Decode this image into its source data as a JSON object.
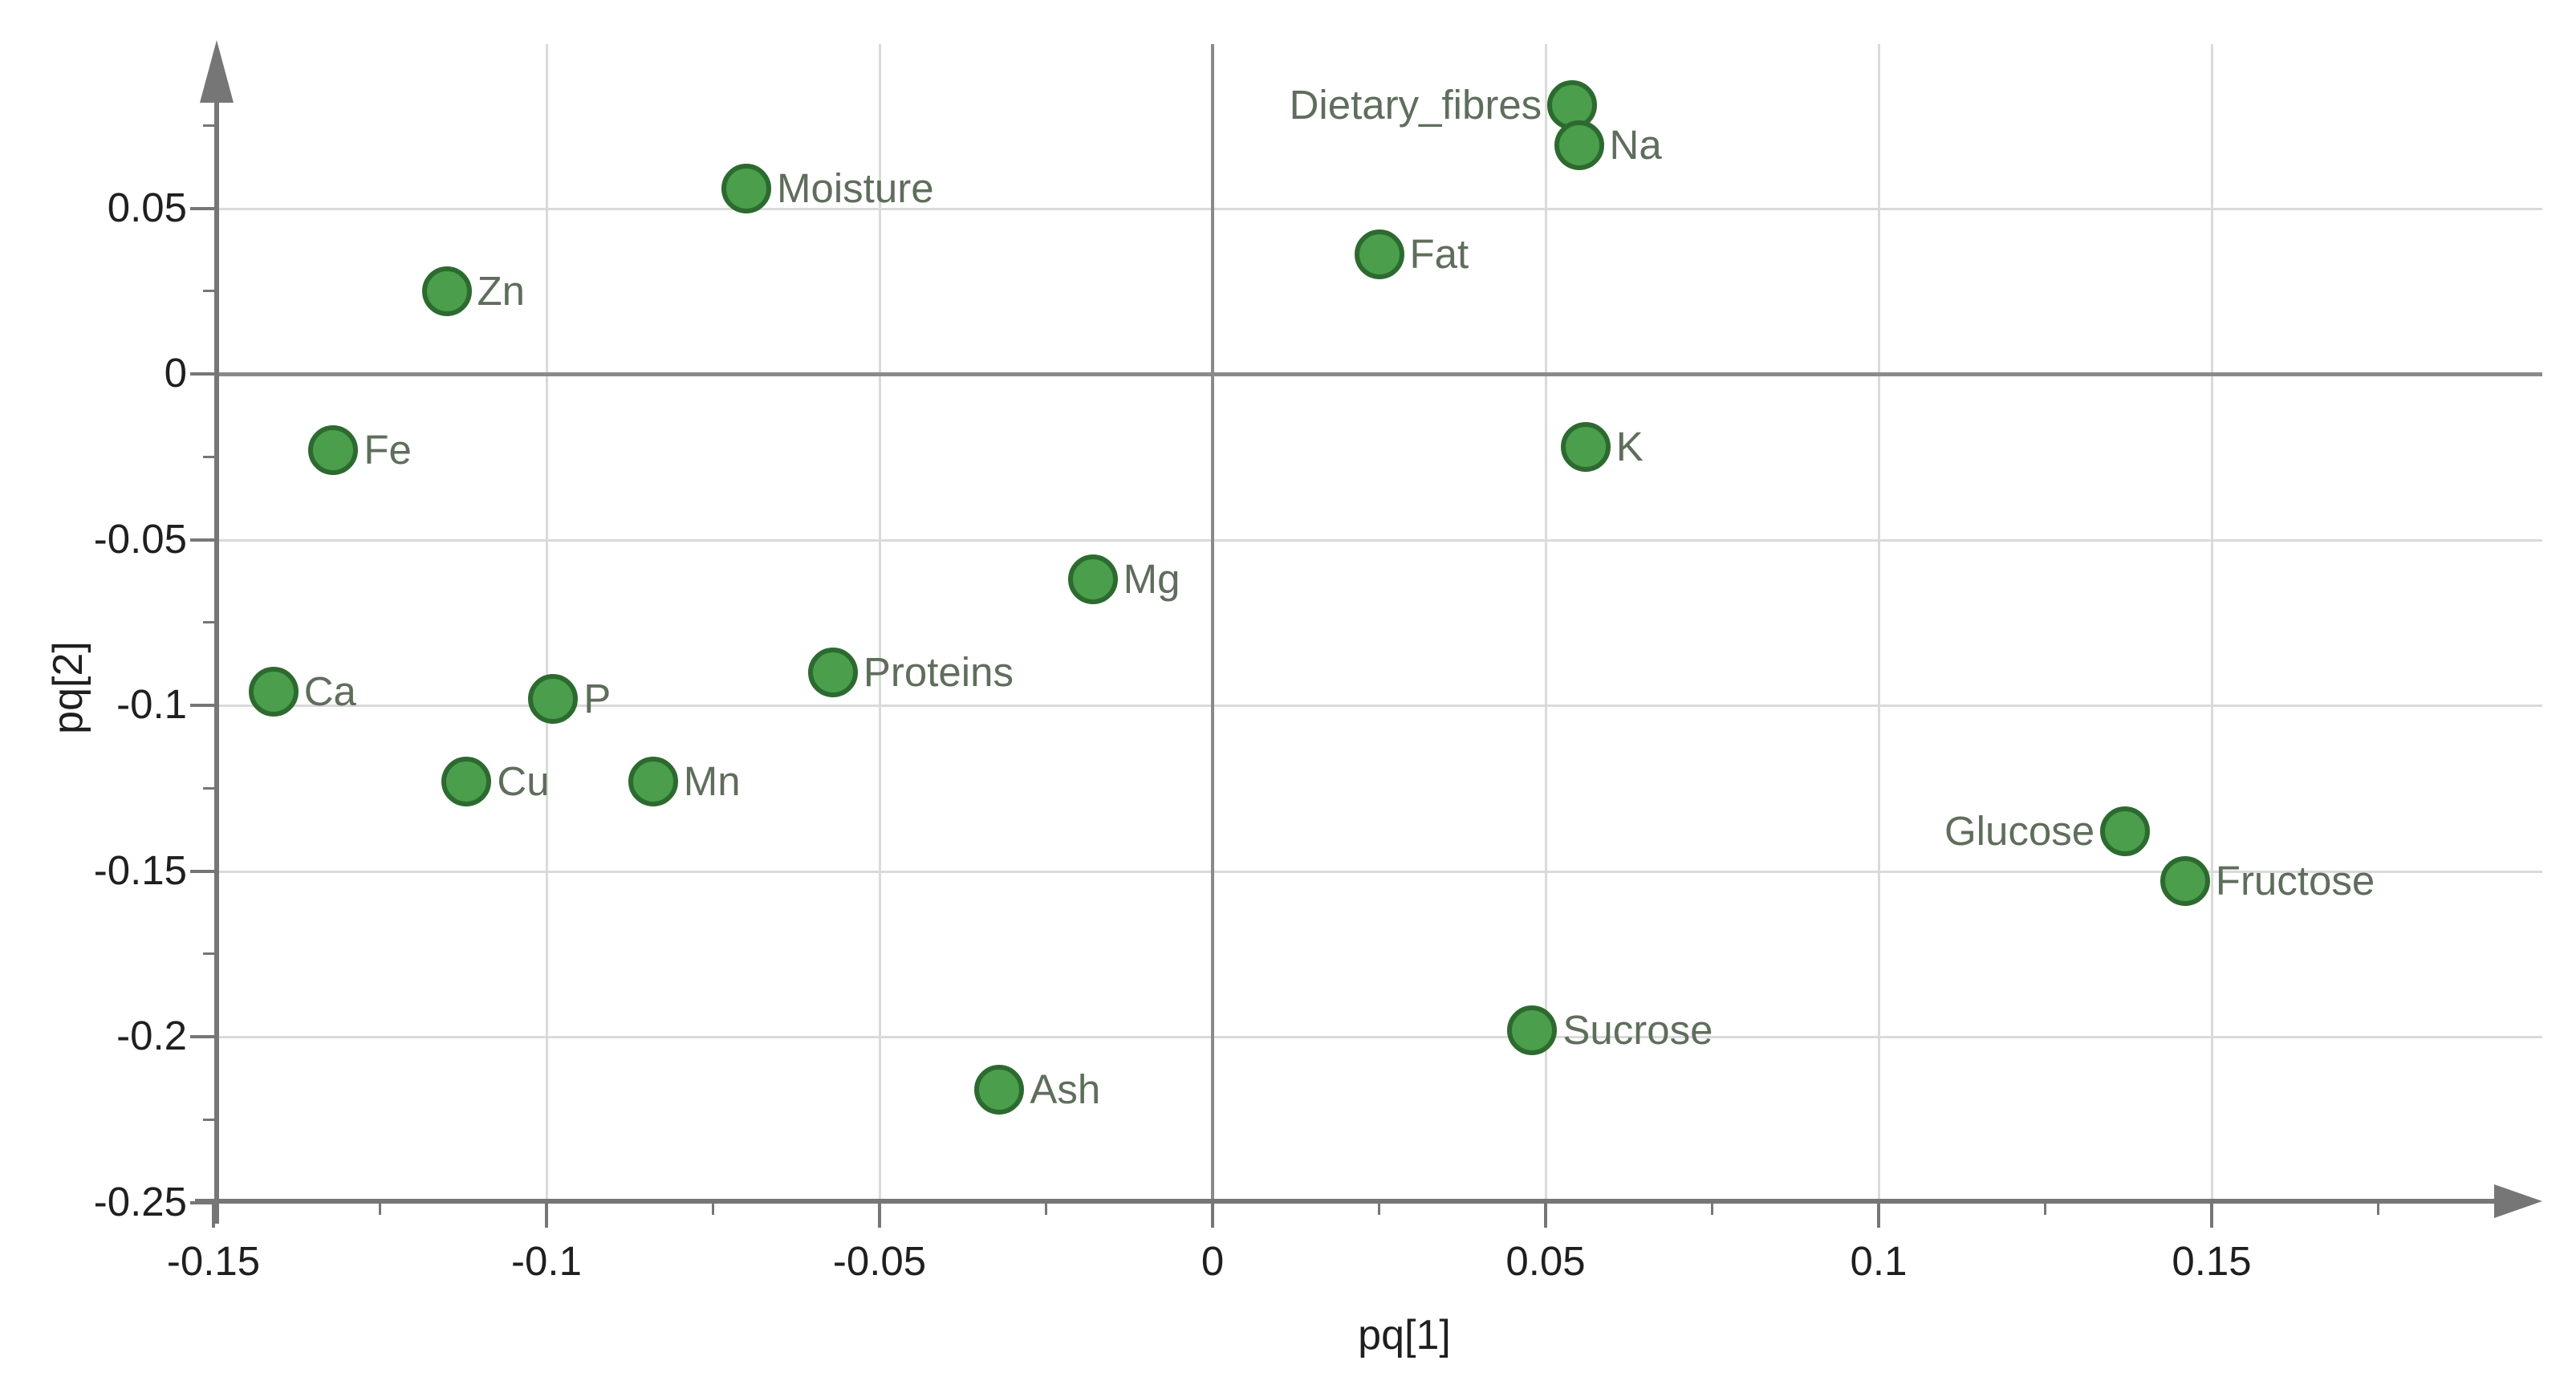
{
  "chart_data": {
    "type": "scatter",
    "title": "",
    "xlabel": "pq[1]",
    "ylabel": "pq[2]",
    "xlim": [
      -0.155,
      0.2
    ],
    "ylim": [
      -0.25,
      0.1
    ],
    "grid": true,
    "legend": "none",
    "x_major_ticks": [
      {
        "value": -0.15,
        "label": "-0.15"
      },
      {
        "value": -0.1,
        "label": "-0.1"
      },
      {
        "value": -0.05,
        "label": "-0.05"
      },
      {
        "value": 0,
        "label": "0"
      },
      {
        "value": 0.05,
        "label": "0.05"
      },
      {
        "value": 0.1,
        "label": "0.1"
      },
      {
        "value": 0.15,
        "label": "0.15"
      }
    ],
    "x_minor_ticks": [
      -0.125,
      -0.075,
      -0.025,
      0.025,
      0.075,
      0.125,
      0.175
    ],
    "y_major_ticks": [
      {
        "value": 0.05,
        "label": "0.05"
      },
      {
        "value": 0,
        "label": "0"
      },
      {
        "value": -0.05,
        "label": "-0.05"
      },
      {
        "value": -0.1,
        "label": "-0.1"
      },
      {
        "value": -0.15,
        "label": "-0.15"
      },
      {
        "value": -0.2,
        "label": "-0.2"
      },
      {
        "value": -0.25,
        "label": "-0.25"
      }
    ],
    "y_minor_ticks": [
      0.075,
      0.025,
      -0.025,
      -0.075,
      -0.125,
      -0.175,
      -0.225
    ],
    "x_gridlines": [
      -0.1,
      -0.05,
      0.05,
      0.1,
      0.15
    ],
    "y_gridlines": [
      0.05,
      -0.05,
      -0.1,
      -0.15,
      -0.2
    ],
    "zero_lines": {
      "x": 0,
      "y": 0
    },
    "points": [
      {
        "label": "Dietary_fibres",
        "x": 0.054,
        "y": 0.081,
        "label_side": "left"
      },
      {
        "label": "Na",
        "x": 0.055,
        "y": 0.069,
        "label_side": "right"
      },
      {
        "label": "Moisture",
        "x": -0.07,
        "y": 0.056,
        "label_side": "right"
      },
      {
        "label": "Fat",
        "x": 0.025,
        "y": 0.036,
        "label_side": "right"
      },
      {
        "label": "Zn",
        "x": -0.115,
        "y": 0.025,
        "label_side": "right"
      },
      {
        "label": "Fe",
        "x": -0.132,
        "y": -0.023,
        "label_side": "right"
      },
      {
        "label": "K",
        "x": 0.056,
        "y": -0.022,
        "label_side": "right"
      },
      {
        "label": "Mg",
        "x": -0.018,
        "y": -0.062,
        "label_side": "right"
      },
      {
        "label": "Proteins",
        "x": -0.057,
        "y": -0.09,
        "label_side": "right"
      },
      {
        "label": "Ca",
        "x": -0.141,
        "y": -0.096,
        "label_side": "right"
      },
      {
        "label": "P",
        "x": -0.099,
        "y": -0.098,
        "label_side": "right"
      },
      {
        "label": "Cu",
        "x": -0.112,
        "y": -0.123,
        "label_side": "right"
      },
      {
        "label": "Mn",
        "x": -0.084,
        "y": -0.123,
        "label_side": "right"
      },
      {
        "label": "Glucose",
        "x": 0.137,
        "y": -0.138,
        "label_side": "left"
      },
      {
        "label": "Fructose",
        "x": 0.146,
        "y": -0.153,
        "label_side": "right"
      },
      {
        "label": "Sucrose",
        "x": 0.048,
        "y": -0.198,
        "label_side": "right"
      },
      {
        "label": "Ash",
        "x": -0.032,
        "y": -0.216,
        "label_side": "right"
      }
    ]
  },
  "style": {
    "background": "#ffffff",
    "dot_fill": "#4a9e4c",
    "dot_stroke": "#2d6a2f",
    "point_label_color": "#5f6e5c",
    "tick_label_color": "#1f1f1f",
    "grid_color": "#dadada",
    "zero_line_color": "#8a8a8a",
    "axis_color": "#767676"
  }
}
